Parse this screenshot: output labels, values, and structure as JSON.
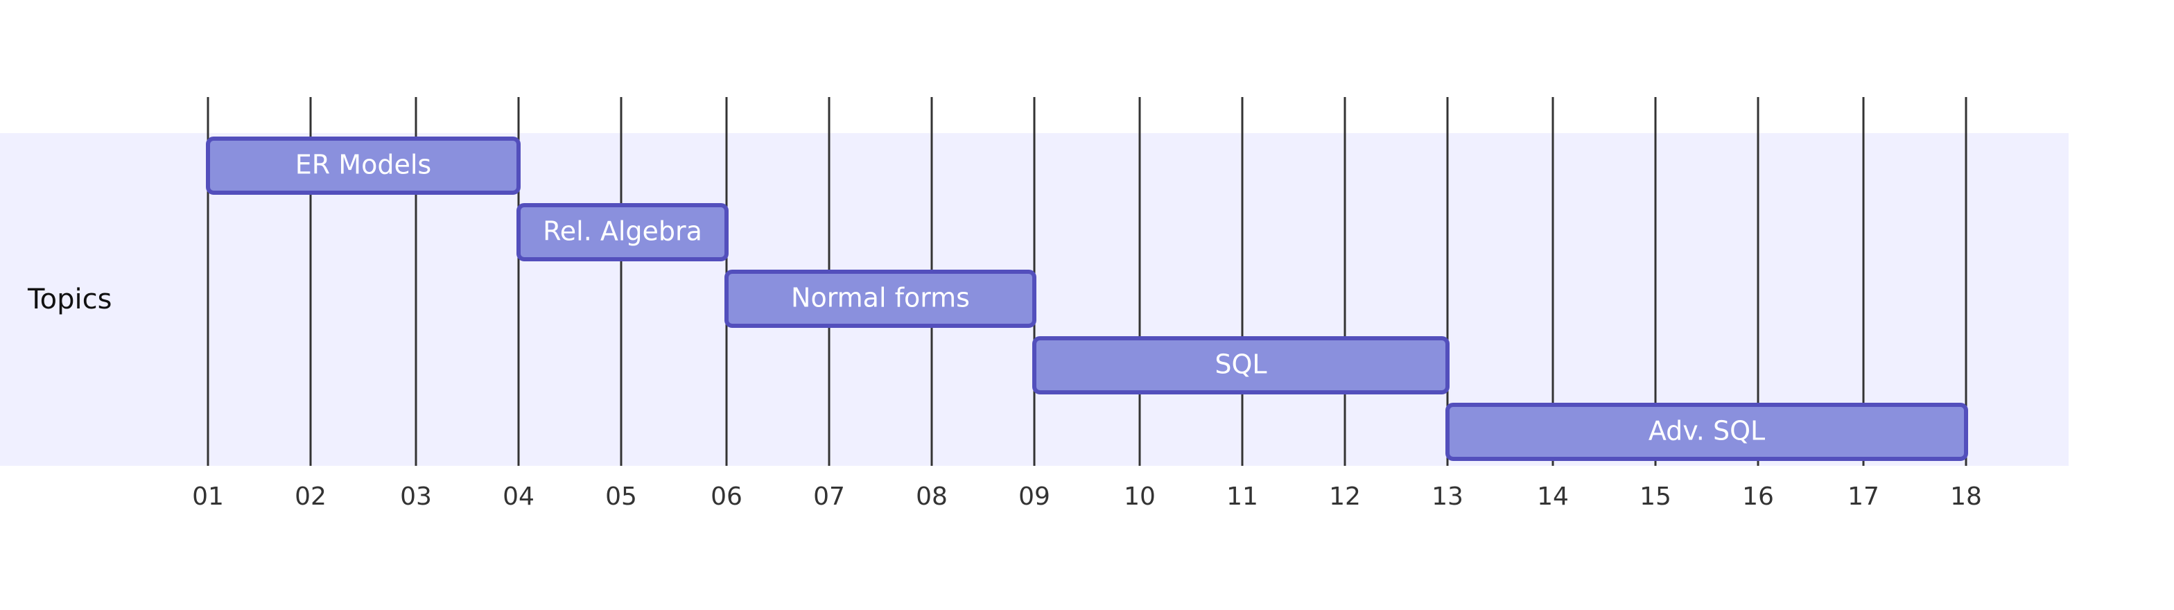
{
  "chart_data": {
    "type": "gantt",
    "x_ticks": [
      "01",
      "02",
      "03",
      "04",
      "05",
      "06",
      "07",
      "08",
      "09",
      "10",
      "11",
      "12",
      "13",
      "14",
      "15",
      "16",
      "17",
      "18"
    ],
    "sections": [
      {
        "label": "Topics",
        "tasks": [
          {
            "label": "ER Models",
            "start": 1,
            "end": 4
          },
          {
            "label": "Rel. Algebra",
            "start": 4,
            "end": 6
          },
          {
            "label": "Normal forms",
            "start": 6,
            "end": 9
          },
          {
            "label": "SQL",
            "start": 9,
            "end": 13
          },
          {
            "label": "Adv. SQL",
            "start": 13,
            "end": 18
          }
        ]
      }
    ],
    "colors": {
      "section_bg": "#f0f0ff",
      "bar_fill": "#8a90dd",
      "bar_stroke": "#534fbc",
      "grid": "#333333"
    }
  }
}
